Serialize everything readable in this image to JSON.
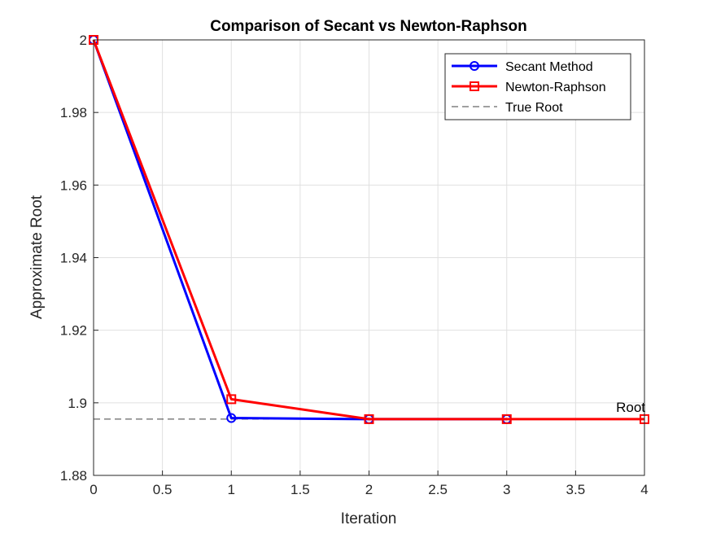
{
  "chart_data": {
    "type": "line",
    "title": "Comparison of Secant vs Newton-Raphson",
    "xlabel": "Iteration",
    "ylabel": "Approximate Root",
    "xlim": [
      0,
      4
    ],
    "ylim": [
      1.88,
      2.0
    ],
    "xticks": [
      0,
      0.5,
      1,
      1.5,
      2,
      2.5,
      3,
      3.5,
      4
    ],
    "xtick_labels": [
      "0",
      "0.5",
      "1",
      "1.5",
      "2",
      "2.5",
      "3",
      "3.5",
      "4"
    ],
    "yticks": [
      1.88,
      1.9,
      1.92,
      1.94,
      1.96,
      1.98,
      2.0
    ],
    "ytick_labels": [
      "1.88",
      "1.9",
      "1.92",
      "1.94",
      "1.96",
      "1.98",
      "2"
    ],
    "grid": true,
    "legend_position": "top-right",
    "series": [
      {
        "name": "Secant Method",
        "x": [
          0,
          1,
          2,
          3
        ],
        "y": [
          2.0,
          1.8958,
          1.8955,
          1.8955
        ],
        "color": "#0000ff",
        "marker": "circle",
        "line_style": "solid"
      },
      {
        "name": "Newton-Raphson",
        "x": [
          0,
          1,
          2,
          3,
          4
        ],
        "y": [
          2.0,
          1.901,
          1.8955,
          1.8955,
          1.8955
        ],
        "color": "#ff0000",
        "marker": "square",
        "line_style": "solid"
      },
      {
        "name": "True Root",
        "x": [
          0,
          4
        ],
        "y": [
          1.8955,
          1.8955
        ],
        "color": "#404040",
        "marker": "none",
        "line_style": "dashed"
      }
    ],
    "annotations": [
      {
        "text": "Root",
        "x": 3.9,
        "y": 1.8955
      }
    ]
  }
}
